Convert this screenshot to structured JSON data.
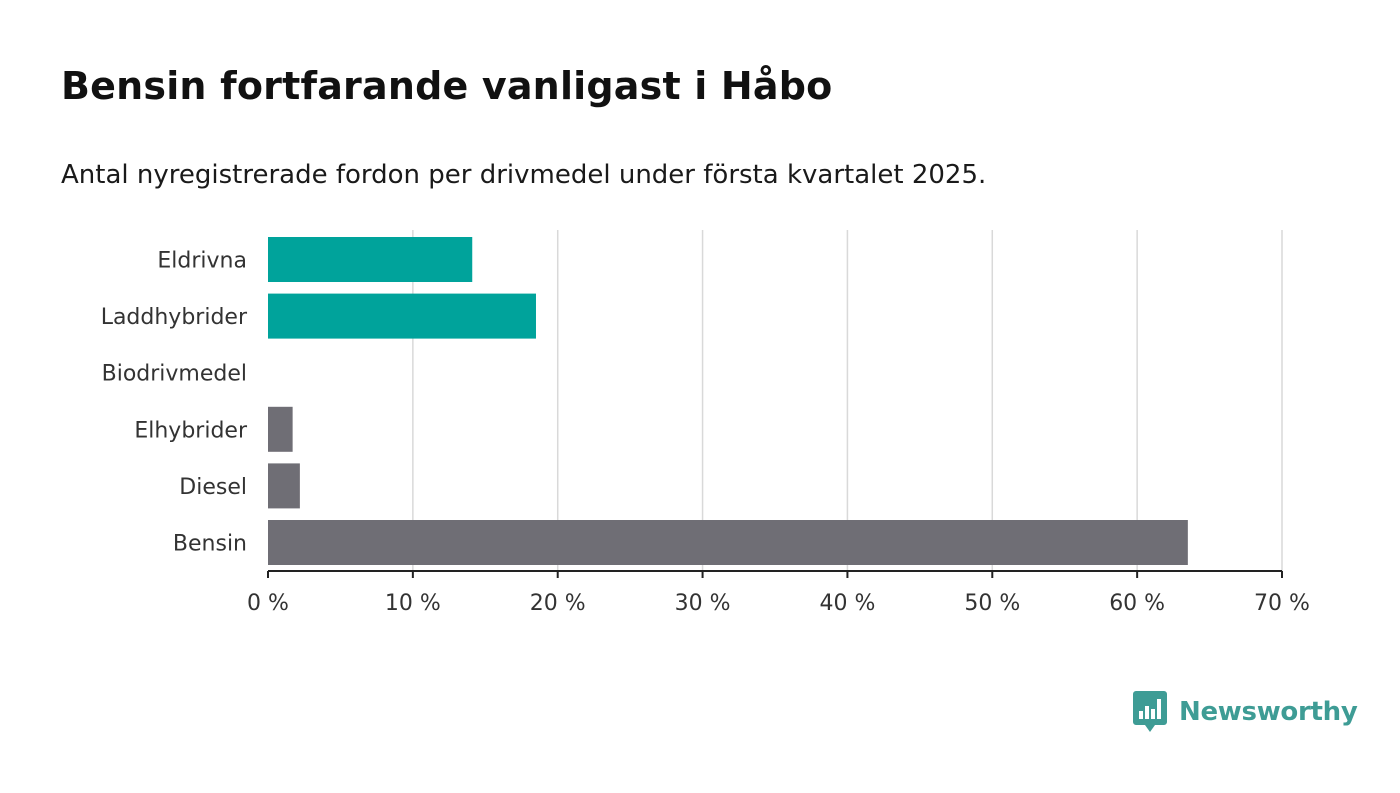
{
  "header": {
    "title": "Bensin fortfarande vanligast i Håbo",
    "subtitle": "Antal nyregistrerade fordon per drivmedel under första kvartalet 2025."
  },
  "brand": {
    "name": "Newsworthy",
    "logo_icon": "bar-chart-speech-bubble-icon",
    "color": "#3e9c95"
  },
  "chart_data": {
    "type": "bar",
    "orientation": "horizontal",
    "categories": [
      "Eldrivna",
      "Laddhybrider",
      "Biodrivmedel",
      "Elhybrider",
      "Diesel",
      "Bensin"
    ],
    "values": [
      14.1,
      18.5,
      0,
      1.7,
      2.2,
      63.5
    ],
    "colors": [
      "#00a39b",
      "#00a39b",
      "#6f6e75",
      "#6f6e75",
      "#6f6e75",
      "#6f6e75"
    ],
    "xlim": [
      0,
      70
    ],
    "xticks": [
      0,
      10,
      20,
      30,
      40,
      50,
      60,
      70
    ],
    "xtick_labels": [
      "0 %",
      "10 %",
      "20 %",
      "30 %",
      "40 %",
      "50 %",
      "60 %",
      "70 %"
    ],
    "grid": true,
    "legend": "none"
  }
}
